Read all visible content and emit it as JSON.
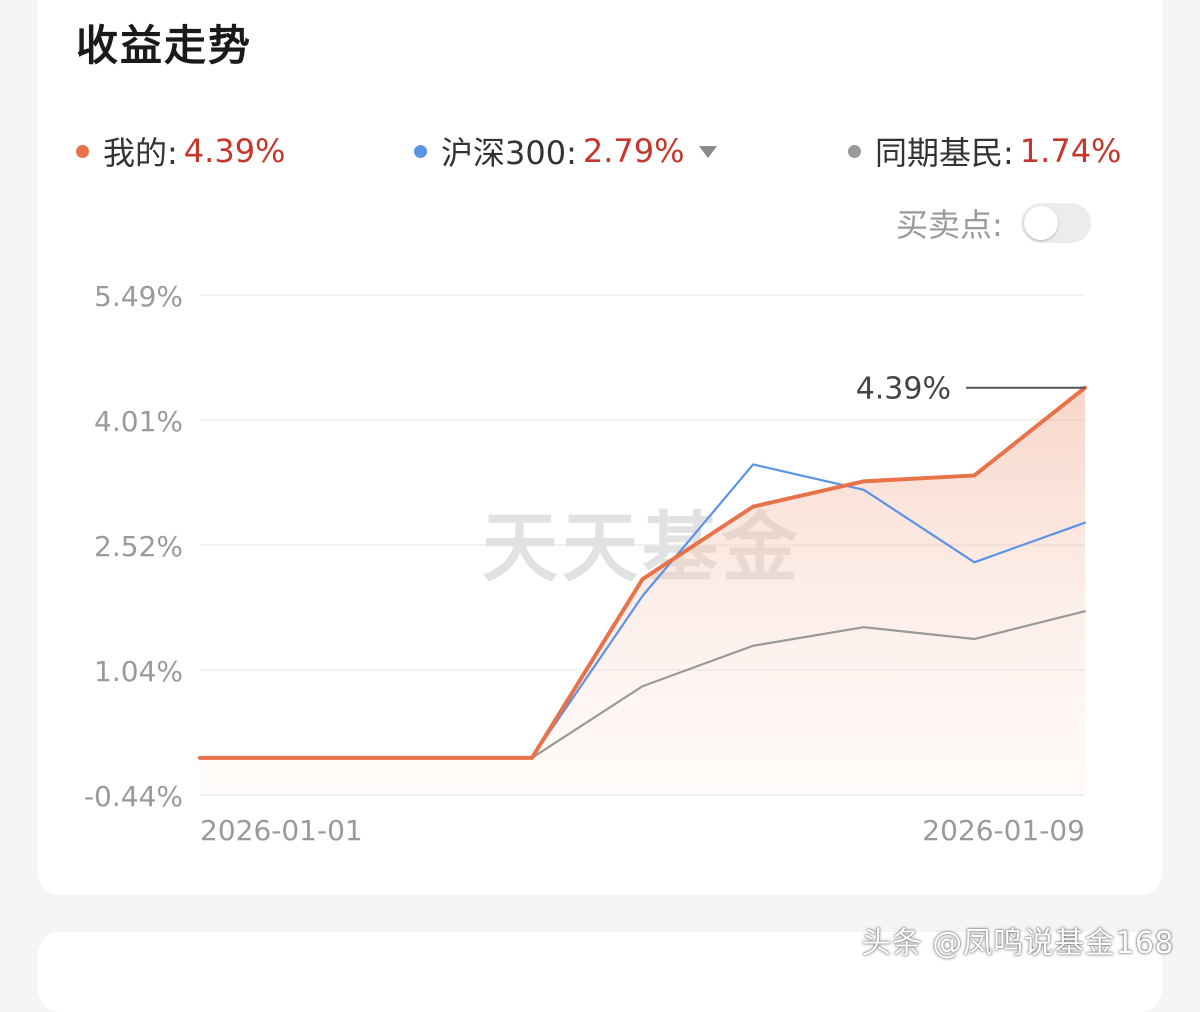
{
  "card": {
    "title": "收益走势"
  },
  "legend": {
    "mine": {
      "label": "我的:",
      "value": "4.39%",
      "color": "#e8734a"
    },
    "index": {
      "label": "沪深300:",
      "value": "2.79%",
      "color": "#5b93e6"
    },
    "peers": {
      "label": "同期基民:",
      "value": "1.74%",
      "color": "#999999"
    }
  },
  "toggle": {
    "label": "买卖点:",
    "on": false
  },
  "watermark_chart": "天天基金",
  "watermark_corner": "头条 @凤鸣说基金168",
  "chart_data": {
    "type": "line",
    "x": [
      "2026-01-01",
      "2026-01-02",
      "2026-01-03",
      "2026-01-04",
      "2026-01-05",
      "2026-01-06",
      "2026-01-07",
      "2026-01-08",
      "2026-01-09"
    ],
    "x_tick_labels": [
      "2026-01-01",
      "2026-01-09"
    ],
    "y_tick_labels": [
      "5.49%",
      "4.01%",
      "2.52%",
      "1.04%",
      "-0.44%"
    ],
    "ylim": [
      -0.44,
      5.49
    ],
    "end_label": "4.39%",
    "series": [
      {
        "name": "我的",
        "color": "#e8734a",
        "values": [
          0,
          0,
          0,
          0,
          2.12,
          2.98,
          3.28,
          3.35,
          4.39
        ]
      },
      {
        "name": "沪深300",
        "color": "#5b93e6",
        "values": [
          0,
          0,
          0,
          0,
          1.92,
          3.48,
          3.18,
          2.32,
          2.79
        ]
      },
      {
        "name": "同期基民",
        "color": "#999999",
        "values": [
          0,
          0,
          0,
          0,
          0.85,
          1.33,
          1.55,
          1.41,
          1.74
        ]
      }
    ],
    "grid": true,
    "area_fill_series": "我的"
  }
}
